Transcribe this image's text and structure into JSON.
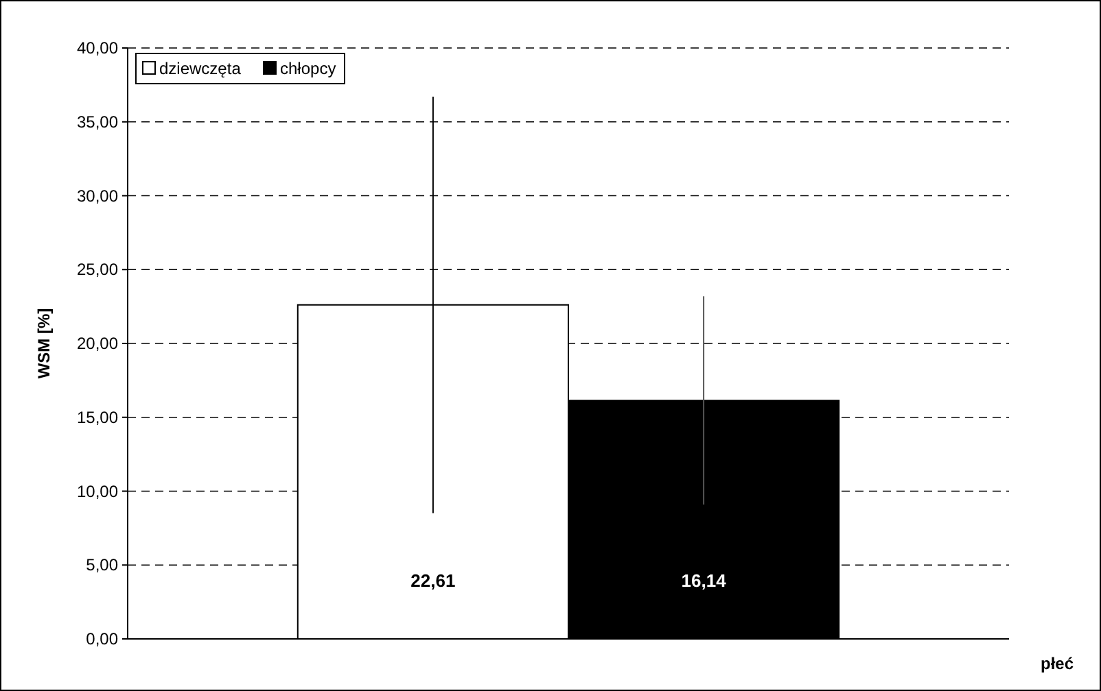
{
  "chart_data": {
    "type": "bar",
    "xlabel": "płeć",
    "ylabel": "WSM [%]",
    "categories": [
      null
    ],
    "series": [
      {
        "name": "dziewczęta",
        "color": "#ffffff",
        "values": [
          22.61
        ],
        "errors": [
          14.1
        ],
        "value_labels": [
          "22,61"
        ]
      },
      {
        "name": "chłopcy",
        "color": "#000000",
        "values": [
          16.14
        ],
        "errors": [
          7.05
        ],
        "value_labels": [
          "16,14"
        ]
      }
    ],
    "ylim": [
      0,
      40
    ],
    "yticks": [
      {
        "value": 0,
        "label": "0,00"
      },
      {
        "value": 5,
        "label": "5,00"
      },
      {
        "value": 10,
        "label": "10,00"
      },
      {
        "value": 15,
        "label": "15,00"
      },
      {
        "value": 20,
        "label": "20,00"
      },
      {
        "value": 25,
        "label": "25,00"
      },
      {
        "value": 30,
        "label": "30,00"
      },
      {
        "value": 35,
        "label": "35,00"
      },
      {
        "value": 40,
        "label": "40,00"
      }
    ],
    "grid": "y",
    "legend": "top left"
  }
}
